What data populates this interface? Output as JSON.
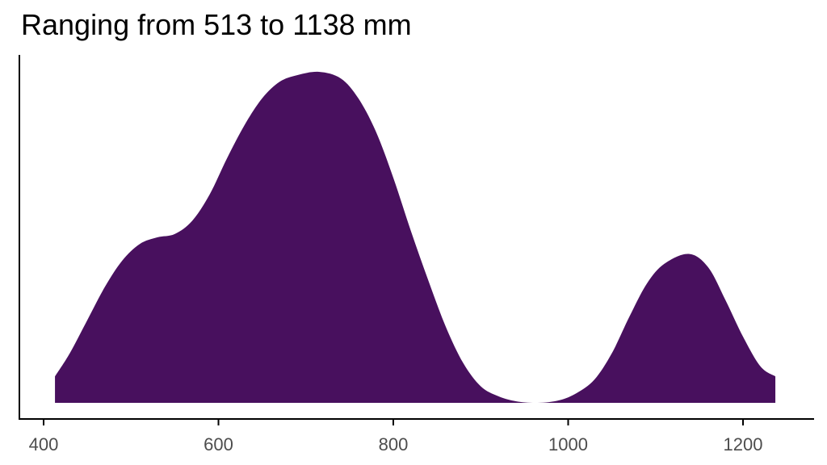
{
  "chart_data": {
    "type": "area",
    "title": "Ranging from 513 to 1138 mm",
    "xlabel": "",
    "ylabel": "",
    "xlim": [
      360,
      1400
    ],
    "ylim": [
      0,
      1
    ],
    "x_ticks": [
      400,
      600,
      800,
      1000,
      1200
    ],
    "y_ticks": [],
    "grid": false,
    "legend": "none",
    "fill_color": "#48105e",
    "series": [
      {
        "x": [
          413,
          430,
          450,
          470,
          490,
          510,
          530,
          550,
          570,
          590,
          610,
          630,
          650,
          670,
          690,
          715,
          740,
          760,
          780,
          800,
          820,
          840,
          860,
          880,
          900,
          920,
          940,
          965,
          990,
          1010,
          1030,
          1050,
          1070,
          1090,
          1110,
          1138,
          1160,
          1180,
          1200,
          1220,
          1237
        ],
        "y": [
          0.08,
          0.15,
          0.25,
          0.35,
          0.43,
          0.48,
          0.5,
          0.51,
          0.55,
          0.63,
          0.74,
          0.84,
          0.92,
          0.97,
          0.99,
          1.0,
          0.98,
          0.92,
          0.82,
          0.68,
          0.52,
          0.37,
          0.23,
          0.12,
          0.05,
          0.02,
          0.005,
          0.0,
          0.008,
          0.03,
          0.07,
          0.15,
          0.26,
          0.36,
          0.42,
          0.45,
          0.41,
          0.31,
          0.2,
          0.11,
          0.08
        ]
      }
    ]
  }
}
